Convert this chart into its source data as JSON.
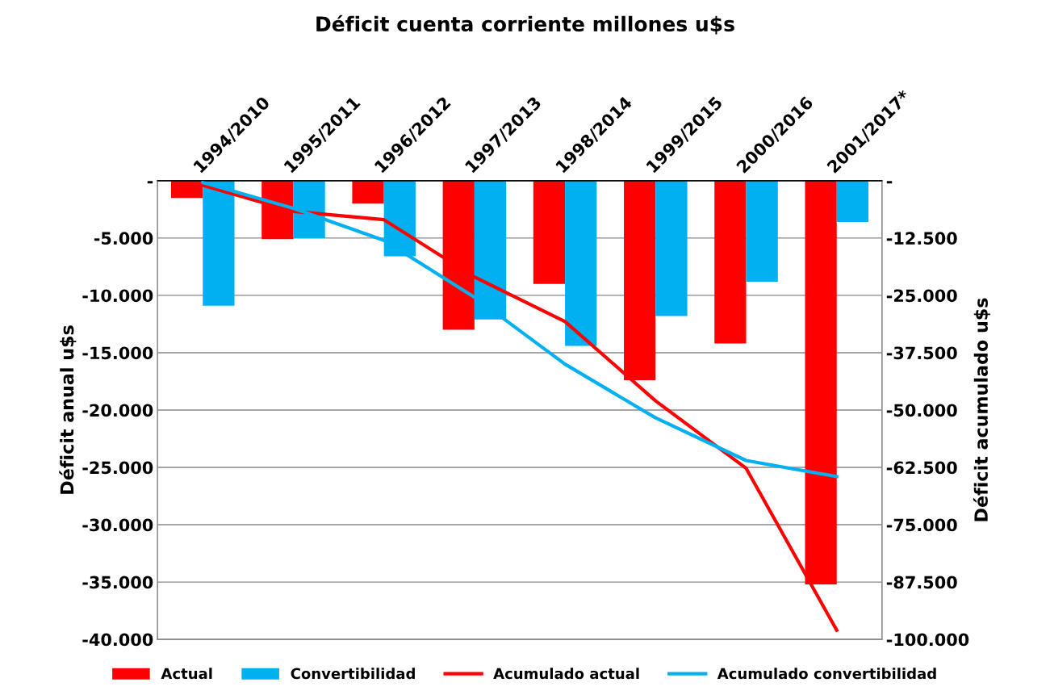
{
  "chart_data": {
    "type": "bar",
    "title": "Déficit cuenta corriente millones u$s",
    "ylabel": "Déficit anual u$s",
    "y2label": "Déficit acumulado u$s",
    "categories": [
      "1994/2010",
      "1995/2011",
      "1996/2012",
      "1997/2013",
      "1998/2014",
      "1999/2015",
      "2000/2016",
      "2001/2017*"
    ],
    "series": [
      {
        "name": "Actual",
        "color": "#ff0000",
        "values": [
          -1500,
          -5100,
          -2000,
          -13000,
          -9000,
          -17400,
          -14200,
          -35200
        ]
      },
      {
        "name": "Convertibilidad",
        "color": "#00b0f0",
        "values": [
          -10900,
          -5000,
          -6600,
          -12100,
          -14400,
          -11800,
          -8800,
          -3600
        ]
      },
      {
        "name": "Acumulado actual",
        "type": "line",
        "axis": "y2",
        "color": "#ff0000",
        "values": [
          -1000,
          -6700,
          -8500,
          -21000,
          -30700,
          -48000,
          -62700,
          -98000
        ]
      },
      {
        "name": "Acumulado convertibilidad",
        "type": "line",
        "axis": "y2",
        "color": "#00b0f0",
        "values": [
          -400,
          -6000,
          -13000,
          -25400,
          -40000,
          -51700,
          -61000,
          -64500
        ]
      }
    ],
    "ylim": [
      -40000,
      0
    ],
    "yticks": [
      {
        "value": 0,
        "label": "-"
      },
      {
        "value": -5000,
        "label": "-5.000"
      },
      {
        "value": -10000,
        "label": "-10.000"
      },
      {
        "value": -15000,
        "label": "-15.000"
      },
      {
        "value": -20000,
        "label": "-20.000"
      },
      {
        "value": -25000,
        "label": "-25.000"
      },
      {
        "value": -30000,
        "label": "-30.000"
      },
      {
        "value": -35000,
        "label": "-35.000"
      },
      {
        "value": -40000,
        "label": "-40.000"
      }
    ],
    "y2lim": [
      -100000,
      0
    ],
    "y2ticks": [
      {
        "value": 0,
        "label": "-"
      },
      {
        "value": -12500,
        "label": "-12.500"
      },
      {
        "value": -25000,
        "label": "-25.000"
      },
      {
        "value": -37500,
        "label": "-37.500"
      },
      {
        "value": -50000,
        "label": "-50.000"
      },
      {
        "value": -62500,
        "label": "-62.500"
      },
      {
        "value": -75000,
        "label": "-75.000"
      },
      {
        "value": -87500,
        "label": "-87.500"
      },
      {
        "value": -100000,
        "label": "-100.000"
      }
    ],
    "grid": "y",
    "legend": "bottom"
  }
}
